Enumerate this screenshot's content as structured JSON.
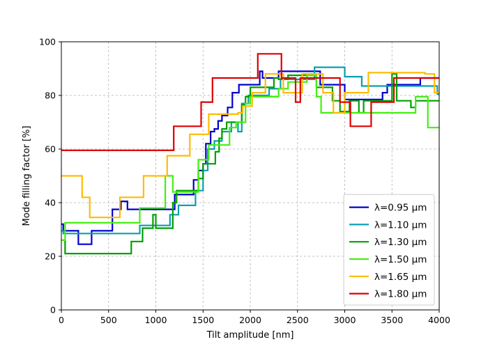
{
  "chart_data": {
    "type": "line",
    "step": true,
    "xlabel": "Tilt amplitude [nm]",
    "ylabel": "Mode filling factor [%]",
    "xlim": [
      0,
      4000
    ],
    "ylim": [
      0,
      100
    ],
    "xticks": [
      0,
      500,
      1000,
      1500,
      2000,
      2500,
      3000,
      3500,
      4000
    ],
    "yticks": [
      0,
      20,
      40,
      60,
      80,
      100
    ],
    "grid": true,
    "legend_position": "lower-right",
    "series": [
      {
        "name": "λ=0.95 μm",
        "color": "#0000cc",
        "x": [
          0,
          20,
          180,
          320,
          540,
          630,
          700,
          850,
          1100,
          1200,
          1250,
          1400,
          1450,
          1500,
          1530,
          1580,
          1620,
          1660,
          1700,
          1760,
          1810,
          1880,
          1920,
          2100,
          2130,
          2180,
          2300,
          2330,
          2620,
          2740,
          2780,
          3000,
          3150,
          3200,
          3300,
          3400,
          3450,
          3500,
          3750,
          3800,
          3950,
          4000
        ],
        "y": [
          32,
          29.5,
          24.5,
          29.5,
          37.5,
          40.5,
          37.5,
          37.5,
          37.5,
          43,
          43,
          48.5,
          52,
          54.5,
          62,
          66.5,
          67.5,
          70.5,
          72.5,
          75.5,
          81,
          84,
          84,
          89,
          86.5,
          86.5,
          89,
          89,
          89,
          84,
          84,
          78.5,
          78.5,
          78.5,
          78.5,
          81,
          84,
          84,
          84,
          86.5,
          86.5,
          86.5
        ]
      },
      {
        "name": "λ=1.10 μm",
        "color": "#0a9fb0",
        "x": [
          0,
          20,
          100,
          830,
          1150,
          1240,
          1420,
          1500,
          1550,
          1620,
          1700,
          1800,
          1870,
          1910,
          1980,
          2200,
          2320,
          2550,
          2680,
          3000,
          3180,
          3750,
          3980,
          4000
        ],
        "y": [
          29.5,
          28.5,
          28.5,
          31.5,
          35.5,
          39,
          44.5,
          52,
          60,
          63,
          66.5,
          70,
          66.5,
          77,
          80,
          82.5,
          86,
          86,
          90.5,
          87,
          83.5,
          83.5,
          80.5,
          80.5
        ]
      },
      {
        "name": "λ=1.30 μm",
        "color": "#00a000",
        "x": [
          0,
          40,
          740,
          860,
          970,
          1000,
          1180,
          1220,
          1300,
          1450,
          1500,
          1550,
          1630,
          1670,
          1700,
          1750,
          1790,
          1910,
          1950,
          2000,
          2050,
          2250,
          2300,
          2400,
          2550,
          2700,
          2750,
          2870,
          2950,
          3050,
          3150,
          3180,
          3200,
          3250,
          3300,
          3350,
          3500,
          3550,
          3700,
          3750,
          4000
        ],
        "y": [
          26,
          21,
          25.5,
          30.5,
          35.5,
          30.5,
          40,
          44.5,
          44.5,
          49,
          54.5,
          54.5,
          59,
          64,
          67.5,
          70,
          70,
          76.5,
          79.5,
          83,
          83,
          86.5,
          86,
          87.5,
          87.5,
          83,
          83,
          78,
          74,
          78,
          73.5,
          73.5,
          78,
          78,
          78,
          78,
          88,
          78,
          75.5,
          78,
          78
        ]
      },
      {
        "name": "λ=1.50 μm",
        "color": "#44ee11",
        "x": [
          0,
          40,
          830,
          1080,
          1100,
          1180,
          1380,
          1450,
          1500,
          1560,
          1600,
          1780,
          1850,
          1950,
          2000,
          2200,
          2300,
          2400,
          2550,
          2600,
          2700,
          2750,
          3400,
          3500,
          3650,
          3750,
          3880,
          4000
        ],
        "y": [
          26,
          32.5,
          38,
          38,
          50,
          44,
          44,
          56,
          56,
          61.5,
          61.5,
          68,
          70,
          77,
          79.5,
          79.5,
          82.5,
          85,
          85,
          87.5,
          79.5,
          73.5,
          73.5,
          73.5,
          73.5,
          79.5,
          68,
          68
        ]
      },
      {
        "name": "λ=1.65 μm",
        "color": "#ffbb00",
        "x": [
          0,
          220,
          300,
          460,
          620,
          700,
          870,
          1050,
          1120,
          1360,
          1520,
          1560,
          1870,
          1920,
          2020,
          2160,
          2260,
          2350,
          2550,
          2770,
          2880,
          3000,
          3100,
          3250,
          3320,
          3450,
          3850,
          3950,
          4000
        ],
        "y": [
          50,
          42,
          34.5,
          34.5,
          42,
          42,
          50,
          50,
          57.5,
          65.5,
          65.5,
          73,
          73.5,
          76,
          81,
          88,
          88,
          81,
          88,
          81,
          73.5,
          81,
          81,
          88.5,
          88.5,
          88.5,
          88,
          81,
          81
        ]
      },
      {
        "name": "λ=1.80 μm",
        "color": "#dd0000",
        "x": [
          0,
          1190,
          1480,
          1600,
          2080,
          2330,
          2480,
          2530,
          2950,
          3000,
          3060,
          3280,
          3300,
          3500,
          3520,
          3580,
          4000
        ],
        "y": [
          59.5,
          68.5,
          77.5,
          86.5,
          95.5,
          86.5,
          77.5,
          86.5,
          77.5,
          77.5,
          68.5,
          77.5,
          77.5,
          77.5,
          86.5,
          86.5,
          86.5
        ]
      }
    ]
  }
}
